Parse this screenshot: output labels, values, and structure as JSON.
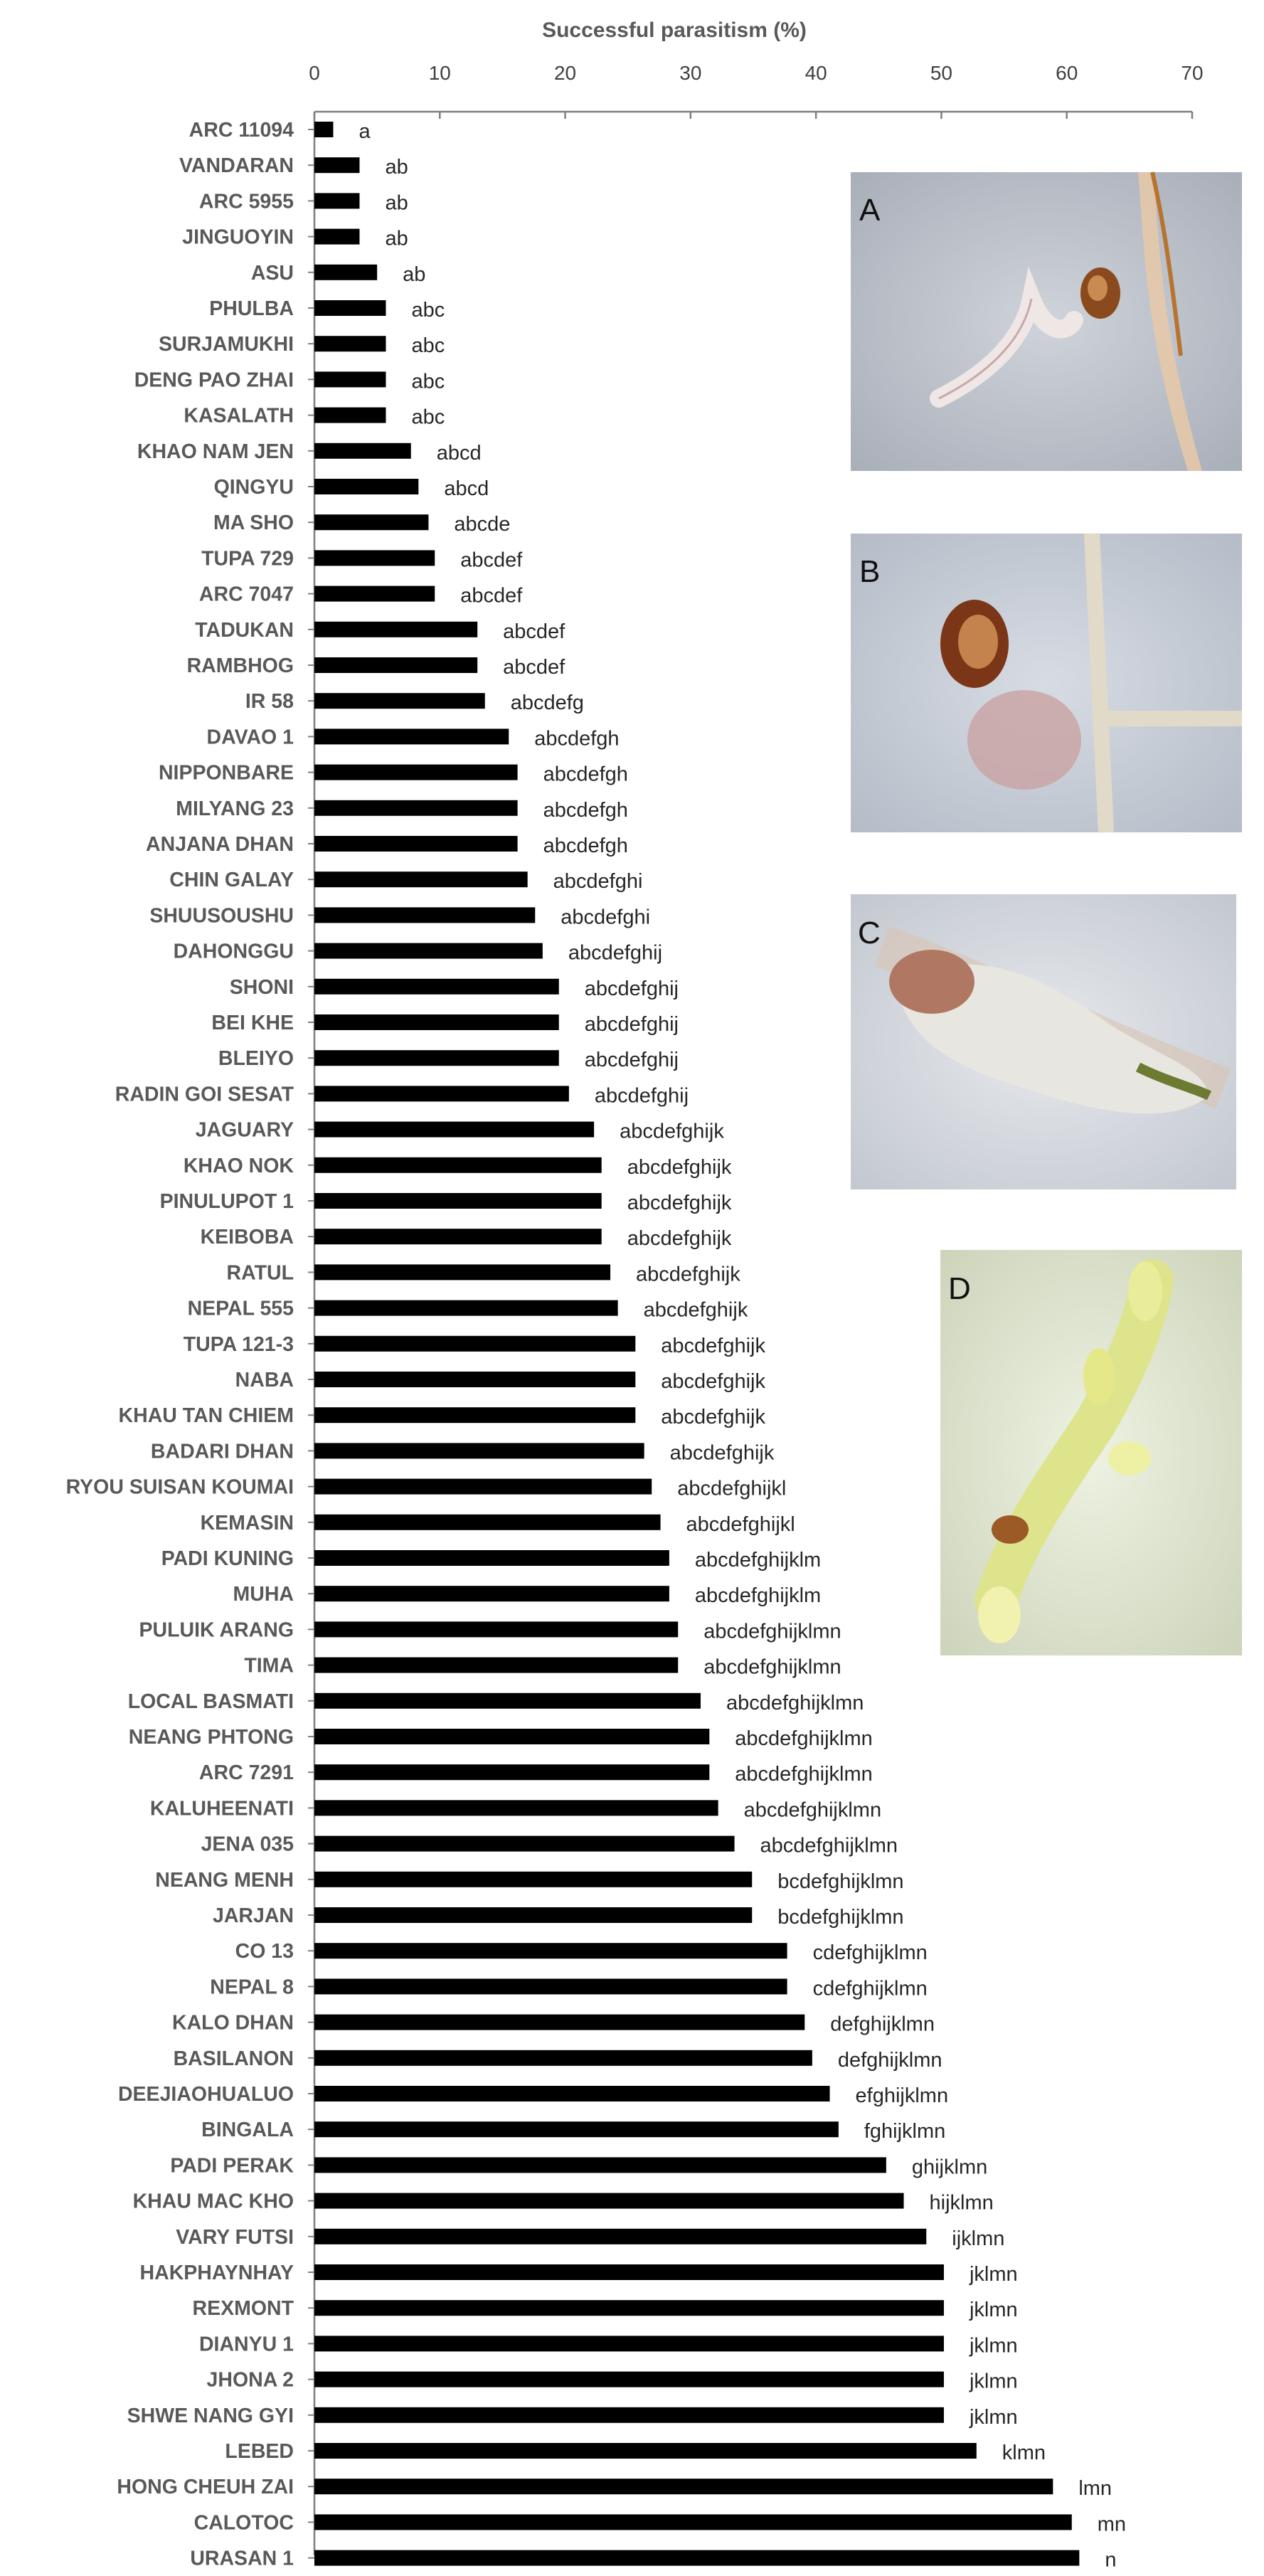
{
  "chart_data": {
    "type": "bar",
    "orientation": "horizontal",
    "xlabel": "Successful parasitism (%)",
    "xlim": [
      0,
      70
    ],
    "xticks": [
      0,
      10,
      20,
      30,
      40,
      50,
      60,
      70
    ],
    "x_axis_position": "top",
    "grid": false,
    "legend": "none",
    "bar_color": "#000000",
    "categories": [
      "ARC 11094",
      "VANDARAN",
      "ARC 5955",
      "JINGUOYIN",
      "ASU",
      "PHULBA",
      "SURJAMUKHI",
      "DENG PAO ZHAI",
      "KASALATH",
      "KHAO NAM JEN",
      "QINGYU",
      "MA SHO",
      "TUPA 729",
      "ARC 7047",
      "TADUKAN",
      "RAMBHOG",
      "IR 58",
      "DAVAO 1",
      "NIPPONBARE",
      "MILYANG 23",
      "ANJANA DHAN",
      "CHIN GALAY",
      "SHUUSOUSHU",
      "DAHONGGU",
      "SHONI",
      "BEI KHE",
      "BLEIYO",
      "RADIN GOI SESAT",
      "JAGUARY",
      "KHAO NOK",
      "PINULUPOT 1",
      "KEIBOBA",
      "RATUL",
      "NEPAL 555",
      "TUPA 121-3",
      "NABA",
      "KHAU TAN CHIEM",
      "BADARI DHAN",
      "RYOU SUISAN KOUMAI",
      "KEMASIN",
      "PADI KUNING",
      "MUHA",
      "PULUIK ARANG",
      "TIMA",
      "LOCAL BASMATI",
      "NEANG PHTONG",
      "ARC 7291",
      "KALUHEENATI",
      "JENA 035",
      "NEANG MENH",
      "JARJAN",
      "CO 13",
      "NEPAL 8",
      "KALO DHAN",
      "BASILANON",
      "DEEJIAOHUALUO",
      "BINGALA",
      "PADI PERAK",
      "KHAU MAC KHO",
      "VARY FUTSI",
      "HAKPHAYNHAY",
      "REXMONT",
      "DIANYU 1",
      "JHONA 2",
      "SHWE NANG GYI",
      "LEBED",
      "HONG CHEUH ZAI",
      "CALOTOC",
      "URASAN 1"
    ],
    "values": [
      1.5,
      3.6,
      3.6,
      3.6,
      5.0,
      5.7,
      5.7,
      5.7,
      5.7,
      7.7,
      8.3,
      9.1,
      9.6,
      9.6,
      13.0,
      13.0,
      13.6,
      15.5,
      16.2,
      16.2,
      16.2,
      17.0,
      17.6,
      18.2,
      19.5,
      19.5,
      19.5,
      20.3,
      22.3,
      22.9,
      22.9,
      22.9,
      23.6,
      24.2,
      25.6,
      25.6,
      25.6,
      26.3,
      26.9,
      27.6,
      28.3,
      28.3,
      29.0,
      29.0,
      30.8,
      31.5,
      31.5,
      32.2,
      33.5,
      34.9,
      34.9,
      37.7,
      37.7,
      39.1,
      39.7,
      41.1,
      41.8,
      45.6,
      47.0,
      48.8,
      50.2,
      50.2,
      50.2,
      50.2,
      50.2,
      52.8,
      58.9,
      60.4,
      61.0
    ],
    "letters": [
      "a",
      "ab",
      "ab",
      "ab",
      "ab",
      "abc",
      "abc",
      "abc",
      "abc",
      "abcd",
      "abcd",
      "abcde",
      "abcdef",
      "abcdef",
      "abcdef",
      "abcdef",
      "abcdefg",
      "abcdefgh",
      "abcdefgh",
      "abcdefgh",
      "abcdefgh",
      "abcdefghi",
      "abcdefghi",
      "abcdefghij",
      "abcdefghij",
      "abcdefghij",
      "abcdefghij",
      "abcdefghij",
      "abcdefghijk",
      "abcdefghijk",
      "abcdefghijk",
      "abcdefghijk",
      "abcdefghijk",
      "abcdefghijk",
      "abcdefghijk",
      "abcdefghijk",
      "abcdefghijk",
      "abcdefghijk",
      "abcdefghijkl",
      "abcdefghijkl",
      "abcdefghijklm",
      "abcdefghijklm",
      "abcdefghijklmn",
      "abcdefghijklmn",
      "abcdefghijklmn",
      "abcdefghijklmn",
      "abcdefghijklmn",
      "abcdefghijklmn",
      "abcdefghijklmn",
      "bcdefghijklmn",
      "bcdefghijklmn",
      "cdefghijklmn",
      "cdefghijklmn",
      "defghijklmn",
      "defghijklmn",
      "efghijklmn",
      "fghijklmn",
      "ghijklmn",
      "hijklmn",
      "ijklmn",
      "jklmn",
      "jklmn",
      "jklmn",
      "jklmn",
      "jklmn",
      "klmn",
      "lmn",
      "mn",
      "n"
    ]
  },
  "panels": [
    {
      "letter": "A",
      "bg": "#b9bfc8"
    },
    {
      "letter": "B",
      "bg": "#c6ccd6"
    },
    {
      "letter": "C",
      "bg": "#d6dae0"
    },
    {
      "letter": "D",
      "bg": "#dfe5cf"
    }
  ]
}
